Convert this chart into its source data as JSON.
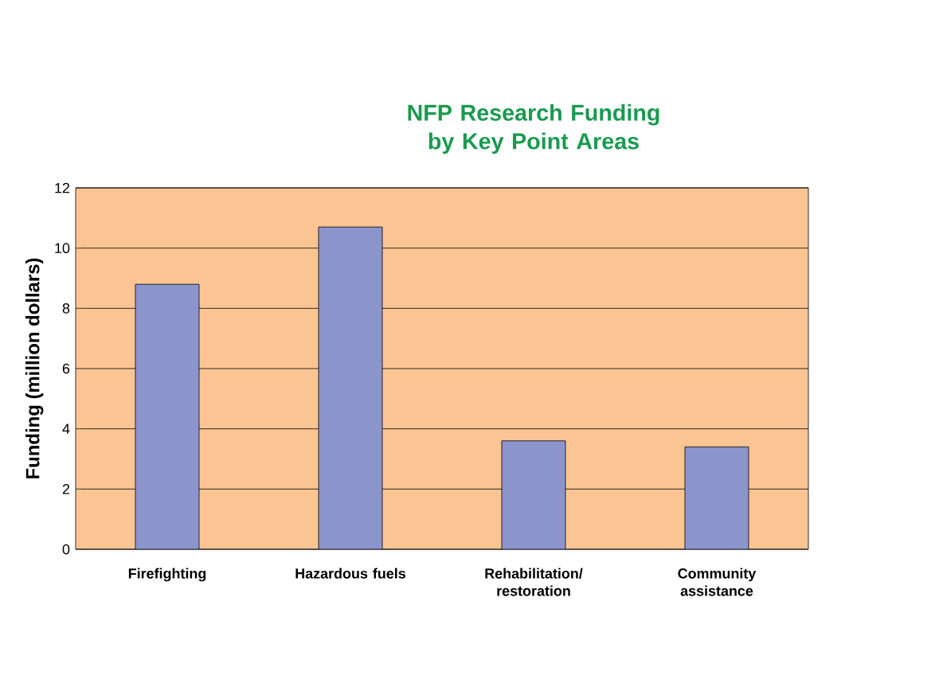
{
  "chart_data": {
    "type": "bar",
    "title": "NFP Research Funding by Key Point Areas",
    "ylabel": "Funding (million dollars)",
    "categories": [
      "Firefighting",
      "Hazardous fuels",
      "Rehabilitation/ restoration",
      "Community assistance"
    ],
    "values": [
      8.8,
      10.7,
      3.6,
      3.4
    ],
    "color": "#8c94cc",
    "ylim": [
      0,
      12
    ],
    "yticks": [
      0,
      2,
      4,
      6,
      8,
      10,
      12
    ],
    "grid": "y"
  }
}
